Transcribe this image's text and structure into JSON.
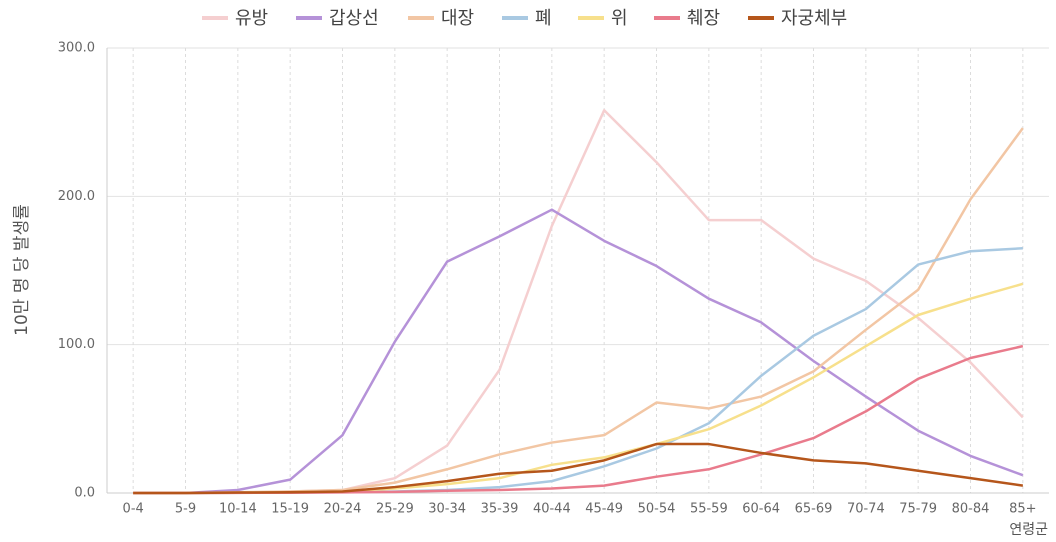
{
  "chart_data": {
    "type": "line",
    "y_label": "10만 명 당 발생률",
    "x_label": "연령군",
    "categories": [
      "0-4",
      "5-9",
      "10-14",
      "15-19",
      "20-24",
      "25-29",
      "30-34",
      "35-39",
      "40-44",
      "45-49",
      "50-54",
      "55-59",
      "60-64",
      "65-69",
      "70-74",
      "75-79",
      "80-84",
      "85+"
    ],
    "series": [
      {
        "name": "유방",
        "color": "#f5cfd0",
        "values": [
          0,
          0,
          0.2,
          1,
          2,
          10,
          32,
          83,
          180,
          258,
          223,
          184,
          184,
          158,
          143,
          118,
          88,
          51
        ]
      },
      {
        "name": "갑상선",
        "color": "#b592d8",
        "values": [
          0,
          0,
          2,
          9,
          39,
          102,
          156,
          173,
          191,
          170,
          153,
          131,
          115,
          89,
          65,
          42,
          25,
          12
        ]
      },
      {
        "name": "대장",
        "color": "#f2c6a4",
        "values": [
          0,
          0,
          0.5,
          1,
          2,
          7,
          16,
          26,
          34,
          39,
          61,
          57,
          65,
          82,
          110,
          137,
          198,
          246
        ]
      },
      {
        "name": "폐",
        "color": "#a9c9e2",
        "values": [
          0,
          0,
          0.2,
          0.3,
          0.5,
          1,
          2,
          4,
          8,
          18,
          30,
          47,
          79,
          106,
          124,
          154,
          163,
          165
        ]
      },
      {
        "name": "위",
        "color": "#f7e08c",
        "values": [
          0,
          0,
          0.2,
          0.5,
          1,
          3,
          6,
          10,
          19,
          24,
          33,
          43,
          59,
          78,
          99,
          120,
          131,
          141
        ]
      },
      {
        "name": "췌장",
        "color": "#e97b8c",
        "values": [
          0,
          0,
          0.1,
          0.2,
          0.4,
          0.8,
          1.5,
          2,
          3,
          5,
          11,
          16,
          26,
          37,
          55,
          77,
          91,
          99
        ]
      },
      {
        "name": "자궁체부",
        "color": "#b5561b",
        "values": [
          0,
          0,
          0.3,
          0.5,
          1,
          4,
          8,
          13,
          15,
          22,
          33,
          33,
          27,
          22,
          20,
          15,
          10,
          5
        ]
      }
    ],
    "ylim": [
      0,
      300
    ],
    "yticks": [
      {
        "value": 0,
        "label": "0.0"
      },
      {
        "value": 100,
        "label": "100.0"
      },
      {
        "value": 200,
        "label": "200.0"
      },
      {
        "value": 300,
        "label": "300.0"
      }
    ],
    "grid": true,
    "legend": "top"
  }
}
